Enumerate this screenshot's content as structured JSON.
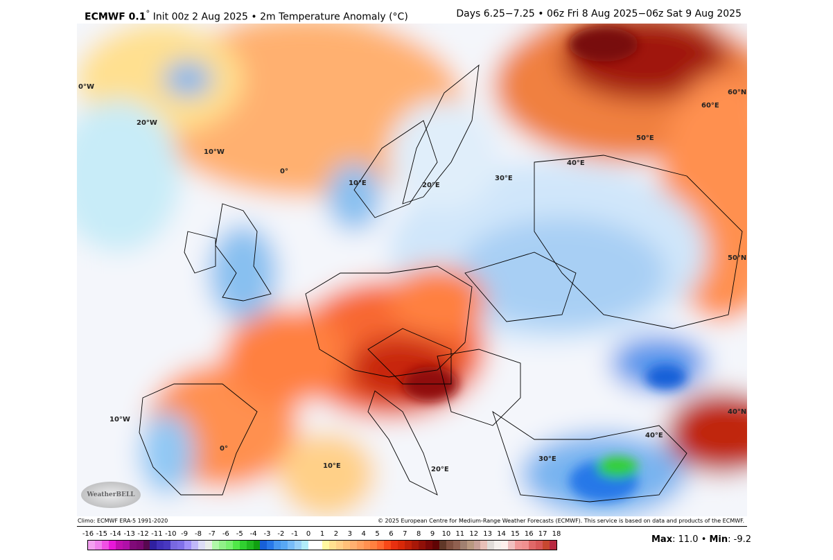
{
  "header": {
    "model": "ECMWF 0.1",
    "degree": "°",
    "title_rest": " Init 00z 2 Aug 2025 • 2m Temperature Anomaly (°C)",
    "valid": "Days 6.25−7.25 • 06z Fri 8 Aug 2025−06z Sat 9 Aug 2025"
  },
  "map": {
    "grid_labels": [
      "0°W",
      "20°W",
      "10°W",
      "0°",
      "10°E",
      "20°E",
      "30°E",
      "40°E",
      "50°E",
      "60°E",
      "60°N",
      "50°N",
      "40°N",
      "10°W",
      "0°",
      "10°E",
      "20°E",
      "30°E",
      "40°E"
    ],
    "logo": "WeatherBELL"
  },
  "footer": {
    "climo": "Climo: ECMWF ERA-5 1991-2020",
    "copyright": "© 2025 European Centre for Medium-Range Weather Forecasts (ECMWF). This service is based on data and products of the ECMWF."
  },
  "colorbar": {
    "ticks": [
      "-16",
      "-15",
      "-14",
      "-13",
      "-12",
      "-11",
      "-10",
      "-9",
      "-8",
      "-7",
      "-6",
      "-5",
      "-4",
      "-3",
      "-2",
      "-1",
      "0",
      "1",
      "2",
      "3",
      "4",
      "5",
      "6",
      "7",
      "8",
      "9",
      "10",
      "11",
      "12",
      "13",
      "14",
      "15",
      "16",
      "17",
      "18"
    ],
    "colors": [
      "#f4a0f0",
      "#f080ec",
      "#f050e4",
      "#e818d8",
      "#c010b0",
      "#b010a8",
      "#800a78",
      "#780870",
      "#580850",
      "#3020a0",
      "#4030b8",
      "#4838c0",
      "#7868e0",
      "#8070e8",
      "#a090f8",
      "#c0b8f8",
      "#dcdcf4",
      "#e8ece8",
      "#b0f8a8",
      "#90f088",
      "#78f070",
      "#50e848",
      "#30d030",
      "#20b820",
      "#10a010",
      "#1860d8",
      "#2878e8",
      "#4898f0",
      "#58a8f4",
      "#78bcf8",
      "#98d0f8",
      "#b0ecf8",
      "#ffffff",
      "#ffffff",
      "#fff8a0",
      "#ffe090",
      "#ffd088",
      "#ffc078",
      "#ffb070",
      "#ffa060",
      "#ff9050",
      "#ff8040",
      "#ff6830",
      "#f84818",
      "#e83010",
      "#d82808",
      "#c02008",
      "#a81808",
      "#901008",
      "#780808",
      "#600404",
      "#603828",
      "#805040",
      "#906050",
      "#a08070",
      "#b89880",
      "#c8a098",
      "#e8c0b8",
      "#e0dcd8",
      "#f4f0ec",
      "#fff0ec",
      "#f0c0c0",
      "#f09898",
      "#f09090",
      "#e06868",
      "#d85858",
      "#c84830",
      "#b82840"
    ]
  },
  "stats": {
    "max_label": "Max",
    "max_value": ": 11.0 • ",
    "min_label": "Min",
    "min_value": ": -9.2"
  }
}
